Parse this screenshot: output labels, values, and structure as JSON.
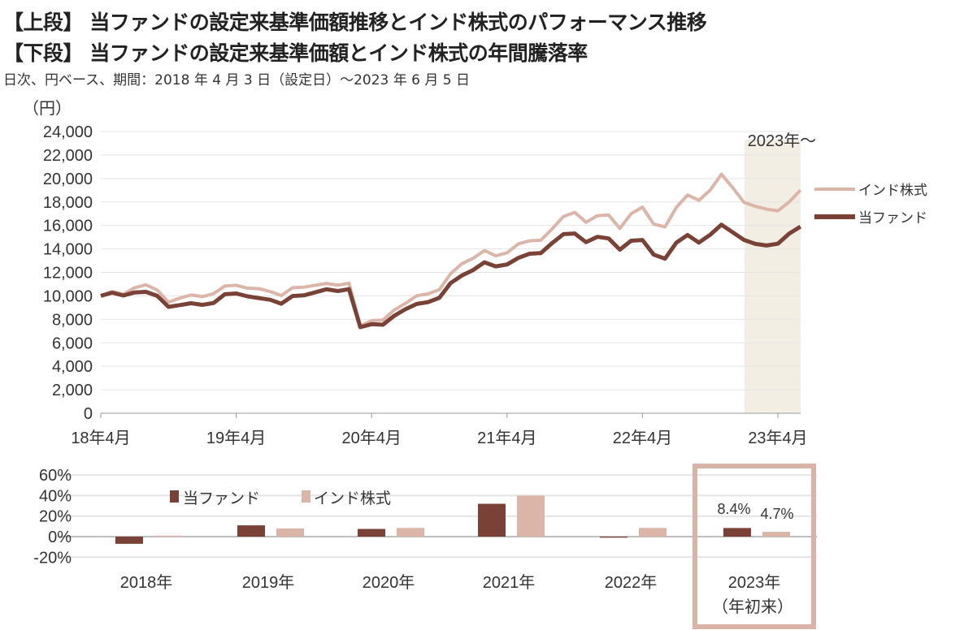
{
  "header": {
    "title_line1": "【上段】 当ファンドの設定来基準価額推移とインド株式のパフォーマンス推移",
    "title_line2": "【下段】 当ファンドの設定来基準価額とインド株式の年間騰落率",
    "subtitle": "日次、円ベース、期間：2018 年 4 月 3 日（設定日）～2023 年 6 月 5 日"
  },
  "colors": {
    "fund": "#7a4236",
    "index": "#dcb5a9",
    "shade": "#f3eee4",
    "highlight": "#d9b3a7"
  },
  "chart_data": [
    {
      "type": "line",
      "ylabel": "（円）",
      "ylim": [
        0,
        24000
      ],
      "yticks": [
        "0",
        "2,000",
        "4,000",
        "6,000",
        "8,000",
        "10,000",
        "12,000",
        "14,000",
        "16,000",
        "18,000",
        "20,000",
        "22,000",
        "24,000"
      ],
      "xticks": [
        "18年4月",
        "19年4月",
        "20年4月",
        "21年4月",
        "22年4月",
        "23年4月"
      ],
      "shaded_label": "2023年～",
      "start_month": "2018-04",
      "series": [
        {
          "name": "インド株式",
          "key": "index",
          "values": [
            10000,
            10400,
            10100,
            10600,
            11000,
            10500,
            9400,
            9900,
            10100,
            9900,
            10100,
            10900,
            10900,
            10600,
            10700,
            10400,
            10000,
            10600,
            10800,
            10900,
            11000,
            11000,
            11100,
            7400,
            7800,
            8000,
            8800,
            9300,
            10100,
            10200,
            10500,
            11800,
            12800,
            13200,
            13800,
            13500,
            13700,
            14400,
            14600,
            14800,
            15700,
            16700,
            17200,
            16300,
            16800,
            16800,
            15800,
            17000,
            17500,
            16200,
            15900,
            17500,
            18500,
            18200,
            19000,
            20300,
            19300,
            18000,
            17600,
            17300,
            17300,
            18000,
            19000
          ]
        },
        {
          "name": "当ファンド",
          "key": "fund",
          "values": [
            10000,
            10300,
            10000,
            10200,
            10400,
            10000,
            9000,
            9300,
            9400,
            9200,
            9300,
            10200,
            10200,
            9900,
            9900,
            9700,
            9300,
            9900,
            10100,
            10300,
            10500,
            10500,
            10600,
            7300,
            7500,
            7600,
            8300,
            8800,
            9400,
            9500,
            9800,
            11000,
            11800,
            12200,
            12800,
            12600,
            12700,
            13200,
            13500,
            13700,
            14500,
            15200,
            15400,
            14600,
            15000,
            14800,
            14000,
            14700,
            14700,
            13600,
            13200,
            14500,
            15100,
            14600,
            15200,
            16000,
            15500,
            14800,
            14400,
            14200,
            14500,
            15300,
            15900
          ]
        }
      ]
    },
    {
      "type": "bar",
      "ylim": [
        -20,
        60
      ],
      "yticks": [
        "-20%",
        "0%",
        "20%",
        "40%",
        "60%"
      ],
      "categories": [
        "2018年",
        "2019年",
        "2020年",
        "2021年",
        "2022年",
        "2023年"
      ],
      "last_category_note": "（年初来）",
      "series": [
        {
          "name": "当ファンド",
          "key": "fund",
          "values": [
            -7,
            11,
            7.5,
            32,
            -1,
            8.4
          ]
        },
        {
          "name": "インド株式",
          "key": "index",
          "values": [
            1,
            8,
            8.5,
            40,
            8.5,
            4.7
          ]
        }
      ],
      "data_labels": {
        "fund": "8.4%",
        "index": "4.7%"
      }
    }
  ]
}
